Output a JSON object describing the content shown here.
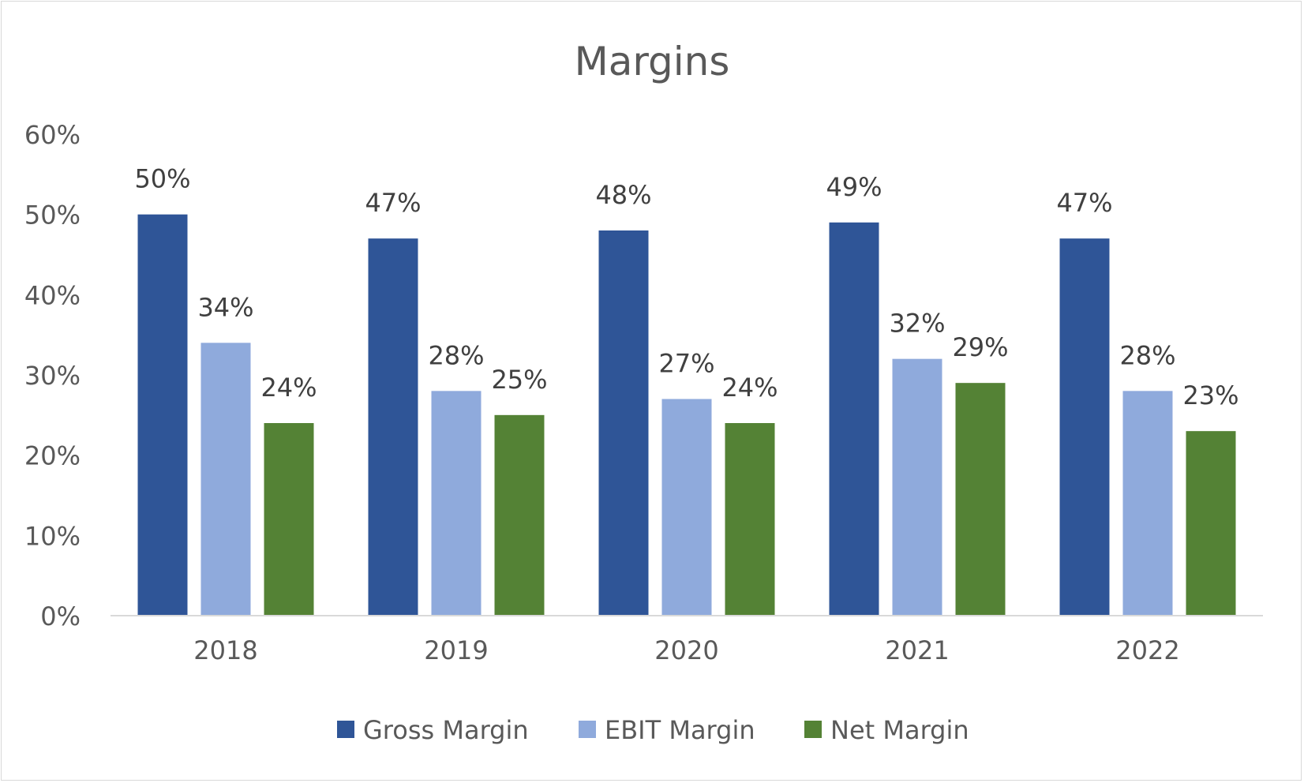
{
  "chart_data": {
    "type": "bar",
    "title": "Margins",
    "xlabel": "",
    "ylabel": "",
    "categories": [
      "2018",
      "2019",
      "2020",
      "2021",
      "2022"
    ],
    "ylim": [
      0,
      60
    ],
    "yticks": [
      "0%",
      "10%",
      "20%",
      "30%",
      "40%",
      "50%",
      "60%"
    ],
    "grid": false,
    "legend": "bottom",
    "series": [
      {
        "name": "Gross Margin",
        "color": "#2F5597",
        "values": [
          50,
          47,
          48,
          49,
          47
        ],
        "labels": [
          "50%",
          "47%",
          "48%",
          "49%",
          "47%"
        ]
      },
      {
        "name": "EBIT Margin",
        "color": "#8FAADC",
        "values": [
          34,
          28,
          27,
          32,
          28
        ],
        "labels": [
          "34%",
          "28%",
          "27%",
          "32%",
          "28%"
        ]
      },
      {
        "name": "Net Margin",
        "color": "#548235",
        "values": [
          24,
          25,
          24,
          29,
          23
        ],
        "labels": [
          "24%",
          "25%",
          "24%",
          "29%",
          "23%"
        ]
      }
    ]
  }
}
